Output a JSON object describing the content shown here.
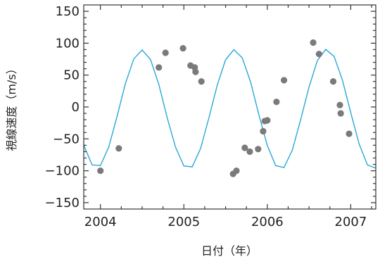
{
  "chart_data": {
    "type": "scatter",
    "title": "",
    "xlabel": "日付（年）",
    "ylabel": "視線速度（m/s）",
    "xlim": [
      2003.8,
      2007.3
    ],
    "ylim": [
      -160,
      160
    ],
    "x_ticks": [
      2004,
      2005,
      2006,
      2007
    ],
    "x_tick_labels": [
      "2004",
      "2005",
      "2006",
      "2007"
    ],
    "y_ticks": [
      150,
      100,
      50,
      0,
      -50,
      -100,
      -150
    ],
    "y_tick_labels": [
      "150",
      "100",
      "50",
      "0",
      "−50",
      "−100",
      "−150"
    ],
    "grid": false,
    "legend": "none",
    "colors": {
      "points": "#7a7a7a",
      "fit_curve": "#29a7d6",
      "axis": "#333333"
    },
    "series": [
      {
        "type": "scatter",
        "x": [
          2004.0,
          2004.22,
          2004.7,
          2004.78,
          2004.99,
          2005.08,
          2005.13,
          2005.14,
          2005.21,
          2005.59,
          2005.63,
          2005.73,
          2005.79,
          2005.89,
          2005.95,
          2005.97,
          2006.0,
          2006.11,
          2006.2,
          2006.55,
          2006.62,
          2006.79,
          2006.87,
          2006.88,
          2006.98
        ],
        "y": [
          -100,
          -65,
          62,
          85,
          92,
          65,
          62,
          55,
          40,
          -105,
          -100,
          -64,
          -70,
          -66,
          -38,
          -22,
          -21,
          8,
          42,
          101,
          83,
          40,
          3,
          -10,
          -42
        ]
      },
      {
        "type": "line",
        "x": [
          2003.8,
          2003.9,
          2004.0,
          2004.1,
          2004.2,
          2004.3,
          2004.4,
          2004.5,
          2004.6,
          2004.7,
          2004.8,
          2004.9,
          2005.0,
          2005.1,
          2005.2,
          2005.3,
          2005.4,
          2005.5,
          2005.6,
          2005.7,
          2005.8,
          2005.9,
          2006.0,
          2006.1,
          2006.2,
          2006.3,
          2006.4,
          2006.5,
          2006.6,
          2006.7,
          2006.8,
          2006.9,
          2007.0,
          2007.1,
          2007.2,
          2007.3
        ],
        "y": [
          -59.9,
          -90.9,
          -91.9,
          -62.7,
          -14.4,
          36.9,
          75.5,
          89.3,
          74.5,
          35.3,
          -16.8,
          -63.1,
          -92.5,
          -93.9,
          -65.1,
          -17.1,
          34.2,
          74.2,
          89.9,
          77.0,
          38.9,
          -12.8,
          -60.5,
          -91.9,
          -95.0,
          -67.5,
          -19.8,
          31.4,
          72.8,
          90.3,
          79.4,
          42.3,
          -8.9,
          -57.8,
          -90.9,
          -95.8
        ]
      }
    ]
  }
}
